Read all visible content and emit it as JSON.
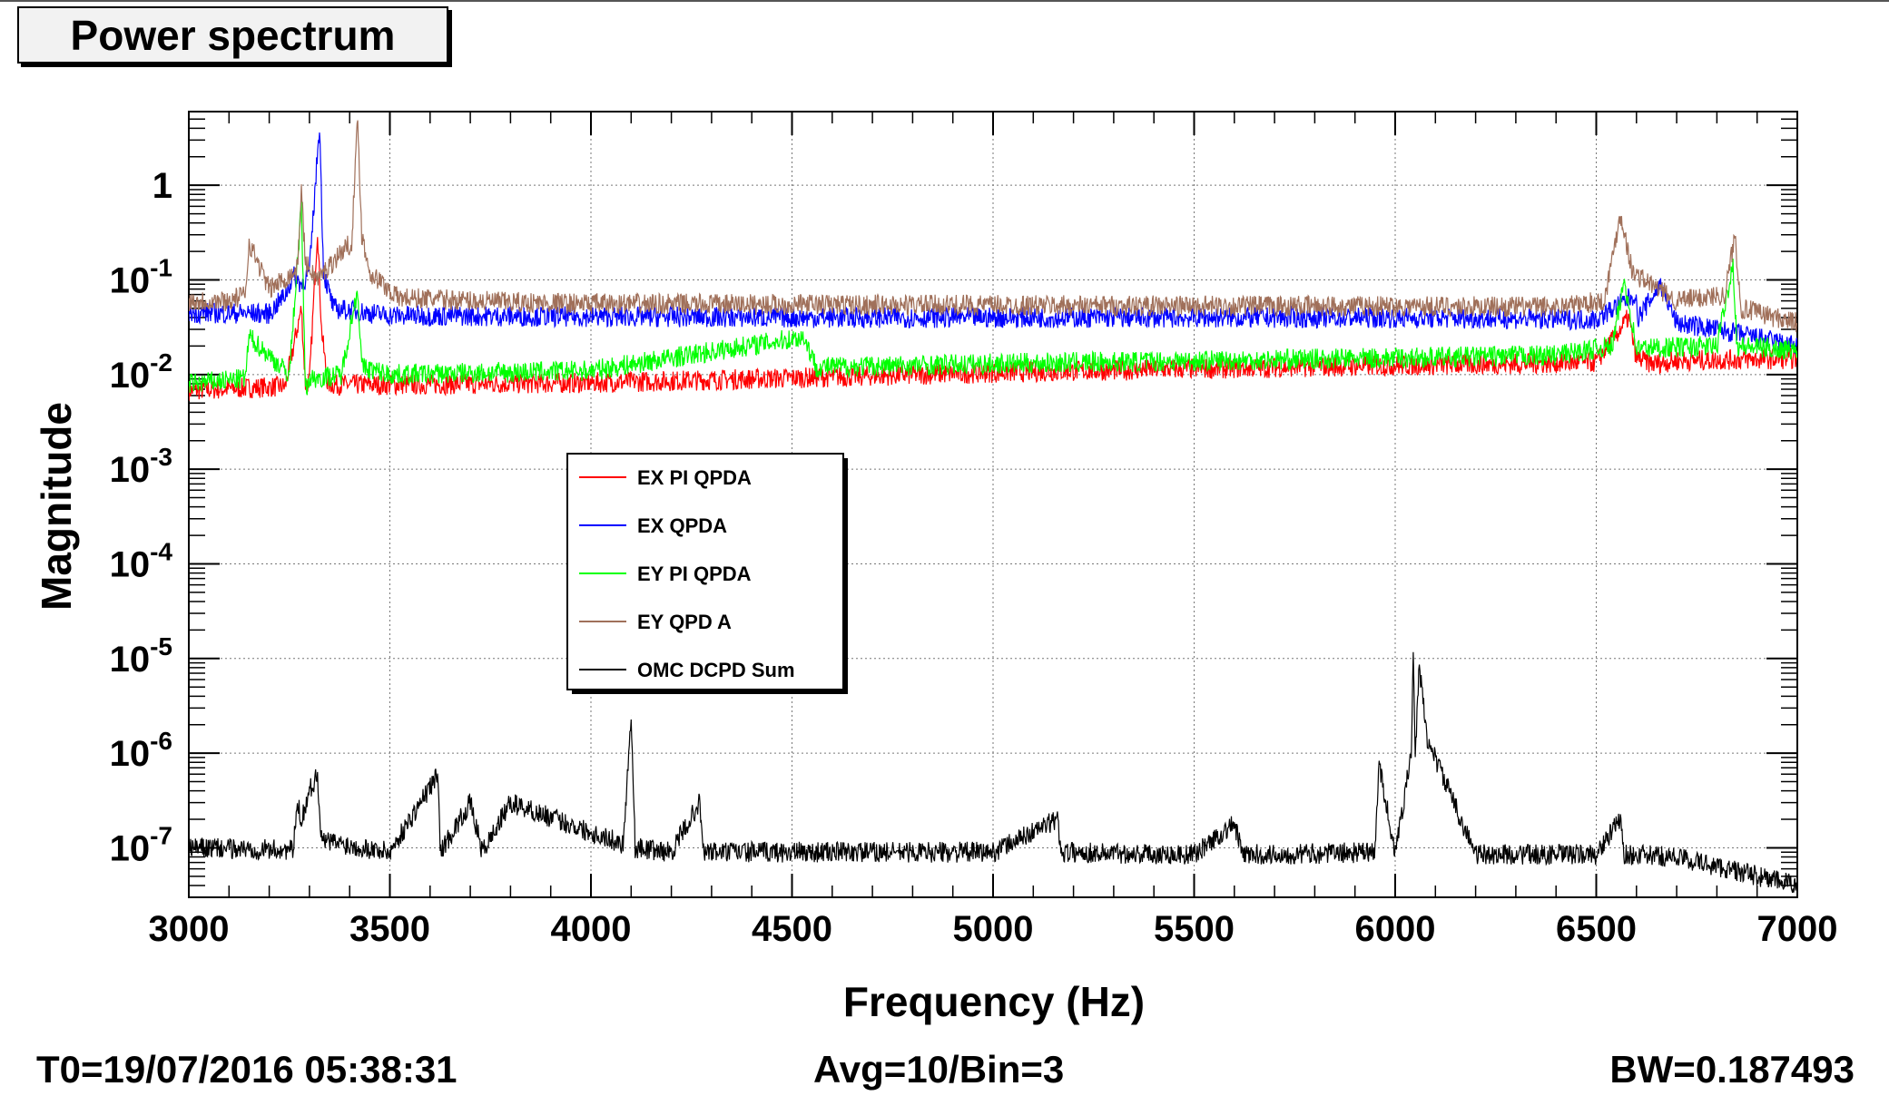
{
  "title": "Power spectrum",
  "footer": {
    "t0": "T0=19/07/2016 05:38:31",
    "avg": "Avg=10/Bin=3",
    "bw": "BW=0.187493"
  },
  "chart_data": {
    "type": "line",
    "xlabel": "Frequency (Hz)",
    "ylabel": "Magnitude",
    "xlim": [
      3000,
      7000
    ],
    "ylim": [
      3e-08,
      6
    ],
    "yscale": "log",
    "grid": true,
    "legend_position": "center-left",
    "x_ticks": [
      3000,
      3500,
      4000,
      4500,
      5000,
      5500,
      6000,
      6500,
      7000
    ],
    "x_tick_labels": [
      "3000",
      "3500",
      "4000",
      "4500",
      "5000",
      "5500",
      "6000",
      "6500",
      "7000"
    ],
    "y_ticks": [
      {
        "value": 1,
        "base": "1",
        "exp": ""
      },
      {
        "value": 0.1,
        "base": "10",
        "exp": "-1"
      },
      {
        "value": 0.01,
        "base": "10",
        "exp": "-2"
      },
      {
        "value": 0.001,
        "base": "10",
        "exp": "-3"
      },
      {
        "value": 0.0001,
        "base": "10",
        "exp": "-4"
      },
      {
        "value": 1e-05,
        "base": "10",
        "exp": "-5"
      },
      {
        "value": 1e-06,
        "base": "10",
        "exp": "-6"
      },
      {
        "value": 1e-07,
        "base": "10",
        "exp": "-7"
      }
    ],
    "series": [
      {
        "name": "EX PI QPDA",
        "color": "#ff0000",
        "x": [
          3000,
          3240,
          3280,
          3290,
          3300,
          3320,
          3330,
          3345,
          3360,
          3500,
          4000,
          4500,
          5000,
          5500,
          6000,
          6300,
          6500,
          6580,
          6600,
          6640,
          6700,
          7000
        ],
        "y": [
          0.0068,
          0.0075,
          0.05,
          0.0078,
          0.0085,
          0.35,
          0.03,
          0.008,
          0.0078,
          0.0078,
          0.0082,
          0.0092,
          0.0105,
          0.0115,
          0.0125,
          0.013,
          0.0135,
          0.04,
          0.015,
          0.013,
          0.014,
          0.0148
        ]
      },
      {
        "name": "EX QPDA",
        "color": "#0000ff",
        "x": [
          3000,
          3200,
          3240,
          3260,
          3280,
          3300,
          3325,
          3335,
          3360,
          3500,
          4000,
          4500,
          5000,
          5500,
          6000,
          6300,
          6500,
          6595,
          6605,
          6660,
          6700,
          6800,
          7000
        ],
        "y": [
          0.045,
          0.044,
          0.07,
          0.11,
          0.09,
          0.12,
          4.5,
          0.12,
          0.05,
          0.042,
          0.041,
          0.04,
          0.04,
          0.04,
          0.04,
          0.039,
          0.038,
          0.07,
          0.04,
          0.09,
          0.035,
          0.03,
          0.02
        ]
      },
      {
        "name": "EY PI QPDA",
        "color": "#00ff00",
        "x": [
          3000,
          3140,
          3150,
          3250,
          3280,
          3290,
          3300,
          3380,
          3400,
          3420,
          3430,
          3500,
          4000,
          4530,
          4560,
          5000,
          5500,
          6000,
          6400,
          6540,
          6570,
          6600,
          6800,
          6840,
          6850,
          7000
        ],
        "y": [
          0.008,
          0.009,
          0.025,
          0.01,
          0.6,
          0.007,
          0.009,
          0.01,
          0.03,
          0.08,
          0.012,
          0.01,
          0.011,
          0.025,
          0.012,
          0.013,
          0.014,
          0.015,
          0.016,
          0.02,
          0.1,
          0.019,
          0.02,
          0.15,
          0.02,
          0.018
        ]
      },
      {
        "name": "EY QPD A",
        "color": "#a0705a",
        "x": [
          3000,
          3100,
          3140,
          3150,
          3200,
          3250,
          3270,
          3280,
          3290,
          3320,
          3380,
          3405,
          3420,
          3430,
          3450,
          3520,
          3800,
          4000,
          4500,
          5000,
          5500,
          6000,
          6400,
          6520,
          6560,
          6590,
          6700,
          6820,
          6845,
          6860,
          7000
        ],
        "y": [
          0.06,
          0.06,
          0.07,
          0.25,
          0.08,
          0.11,
          0.13,
          0.9,
          0.15,
          0.1,
          0.2,
          0.25,
          5.0,
          0.3,
          0.12,
          0.065,
          0.058,
          0.056,
          0.055,
          0.054,
          0.053,
          0.053,
          0.052,
          0.06,
          0.5,
          0.12,
          0.06,
          0.07,
          0.3,
          0.05,
          0.035
        ]
      },
      {
        "name": "OMC DCPD Sum",
        "color": "#000000",
        "x": [
          3000,
          3260,
          3270,
          3280,
          3300,
          3320,
          3330,
          3500,
          3620,
          3625,
          3700,
          3730,
          3800,
          4080,
          4100,
          4110,
          4200,
          4270,
          4280,
          4500,
          5000,
          5160,
          5170,
          5500,
          5600,
          5620,
          5700,
          5950,
          5960,
          6000,
          6040,
          6045,
          6050,
          6060,
          6080,
          6200,
          6500,
          6560,
          6570,
          6700,
          7000
        ],
        "y": [
          1e-07,
          9.5e-08,
          3e-07,
          2e-07,
          4e-07,
          6e-07,
          1.2e-07,
          9e-08,
          6e-07,
          9e-08,
          3e-07,
          9e-08,
          3e-07,
          1.1e-07,
          2.5e-06,
          1e-07,
          9e-08,
          3e-07,
          9e-08,
          9e-08,
          9e-08,
          2e-07,
          9e-08,
          8.5e-08,
          1.8e-07,
          8.5e-08,
          8.5e-08,
          9e-08,
          8e-07,
          8.5e-08,
          1e-06,
          1e-05,
          1e-06,
          8e-06,
          1.4e-06,
          8.5e-08,
          8.5e-08,
          2e-07,
          8.5e-08,
          8e-08,
          4e-08
        ]
      }
    ]
  }
}
